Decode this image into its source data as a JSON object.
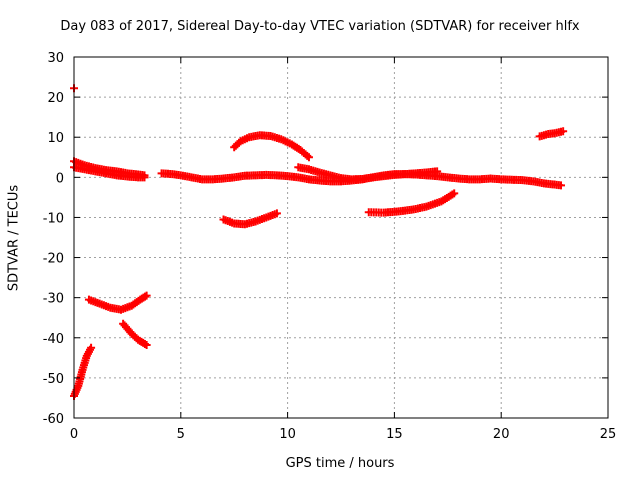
{
  "chart_data": {
    "type": "scatter",
    "title": "Day 083 of 2017, Sidereal Day-to-day VTEC variation (SDTVAR) for receiver hlfx",
    "xlabel": "GPS time / hours",
    "ylabel": "SDTVAR / TECUs",
    "xlim": [
      0,
      25
    ],
    "ylim": [
      -60,
      30
    ],
    "xticks": [
      "0",
      "5",
      "10",
      "15",
      "20",
      "25"
    ],
    "yticks": [
      "30",
      "20",
      "10",
      "0",
      "-10",
      "-20",
      "-30",
      "-40",
      "-50",
      "-60"
    ],
    "grid": true,
    "marker": "plus",
    "color": "#ff0000",
    "series": [
      {
        "points": [
          [
            0.0,
            4.0
          ],
          [
            0.5,
            3.0
          ],
          [
            1.0,
            2.3
          ],
          [
            1.5,
            1.8
          ],
          [
            2.0,
            1.5
          ],
          [
            2.5,
            1.0
          ],
          [
            3.0,
            0.7
          ],
          [
            3.3,
            0.5
          ]
        ]
      },
      {
        "points": [
          [
            0.0,
            2.5
          ],
          [
            0.5,
            2.0
          ],
          [
            1.0,
            1.5
          ],
          [
            1.5,
            1.0
          ],
          [
            2.0,
            0.5
          ],
          [
            2.5,
            0.2
          ],
          [
            3.0,
            0.0
          ],
          [
            3.3,
            0.0
          ]
        ]
      },
      {
        "points": [
          [
            4.1,
            1.0
          ],
          [
            4.6,
            0.8
          ],
          [
            5.0,
            0.5
          ],
          [
            5.5,
            0.0
          ],
          [
            6.0,
            -0.5
          ],
          [
            6.5,
            -0.5
          ],
          [
            7.0,
            -0.3
          ],
          [
            7.5,
            0.0
          ],
          [
            8.0,
            0.4
          ],
          [
            8.5,
            0.5
          ],
          [
            9.0,
            0.6
          ],
          [
            9.5,
            0.5
          ],
          [
            10.0,
            0.3
          ],
          [
            10.5,
            0.0
          ],
          [
            11.0,
            -0.5
          ],
          [
            11.5,
            -0.8
          ],
          [
            12.0,
            -1.0
          ],
          [
            12.5,
            -1.0
          ],
          [
            13.0,
            -0.8
          ],
          [
            13.5,
            -0.5
          ],
          [
            14.0,
            0.0
          ],
          [
            14.5,
            0.5
          ],
          [
            15.0,
            0.8
          ],
          [
            15.5,
            0.8
          ],
          [
            16.0,
            0.7
          ],
          [
            16.5,
            0.5
          ],
          [
            17.0,
            0.3
          ],
          [
            17.5,
            0.0
          ],
          [
            18.0,
            -0.3
          ],
          [
            18.5,
            -0.5
          ],
          [
            19.0,
            -0.5
          ],
          [
            19.5,
            -0.3
          ],
          [
            20.0,
            -0.5
          ],
          [
            20.5,
            -0.6
          ],
          [
            21.0,
            -0.7
          ],
          [
            21.5,
            -1.0
          ],
          [
            22.0,
            -1.5
          ],
          [
            22.5,
            -1.8
          ],
          [
            22.8,
            -2.0
          ]
        ]
      },
      {
        "points": [
          [
            10.5,
            2.5
          ],
          [
            11.0,
            2.0
          ],
          [
            11.5,
            1.2
          ],
          [
            12.0,
            0.5
          ],
          [
            12.5,
            -0.2
          ],
          [
            13.0,
            -0.5
          ],
          [
            13.5,
            -0.4
          ],
          [
            14.0,
            0.0
          ],
          [
            14.5,
            0.3
          ],
          [
            15.0,
            0.6
          ],
          [
            15.5,
            0.8
          ],
          [
            16.0,
            1.0
          ],
          [
            16.5,
            1.2
          ],
          [
            17.0,
            1.5
          ]
        ]
      },
      {
        "points": [
          [
            7.5,
            7.5
          ],
          [
            7.8,
            9.0
          ],
          [
            8.2,
            10.0
          ],
          [
            8.7,
            10.5
          ],
          [
            9.2,
            10.3
          ],
          [
            9.7,
            9.5
          ],
          [
            10.2,
            8.2
          ],
          [
            10.6,
            6.8
          ],
          [
            11.0,
            5.0
          ]
        ]
      },
      {
        "points": [
          [
            7.0,
            -10.5
          ],
          [
            7.5,
            -11.5
          ],
          [
            8.0,
            -11.7
          ],
          [
            8.5,
            -11.0
          ],
          [
            9.0,
            -10.0
          ],
          [
            9.5,
            -9.0
          ]
        ]
      },
      {
        "points": [
          [
            13.8,
            -8.7
          ],
          [
            14.5,
            -8.8
          ],
          [
            15.2,
            -8.5
          ],
          [
            15.9,
            -8.0
          ],
          [
            16.5,
            -7.3
          ],
          [
            17.2,
            -6.0
          ],
          [
            17.8,
            -4.0
          ]
        ]
      },
      {
        "points": [
          [
            21.8,
            10.2
          ],
          [
            22.2,
            10.8
          ],
          [
            22.5,
            11.0
          ],
          [
            22.9,
            11.5
          ]
        ]
      },
      {
        "points": [
          [
            0.0,
            22.2
          ]
        ]
      },
      {
        "points": [
          [
            0.7,
            -30.5
          ],
          [
            1.2,
            -31.5
          ],
          [
            1.7,
            -32.5
          ],
          [
            2.2,
            -33.0
          ],
          [
            2.7,
            -32.0
          ],
          [
            3.1,
            -30.5
          ],
          [
            3.4,
            -29.5
          ]
        ]
      },
      {
        "points": [
          [
            2.3,
            -36.5
          ],
          [
            2.7,
            -39.0
          ],
          [
            3.0,
            -40.5
          ],
          [
            3.4,
            -41.8
          ]
        ]
      },
      {
        "points": [
          [
            0.0,
            -54.5
          ],
          [
            0.2,
            -52.0
          ],
          [
            0.4,
            -48.0
          ],
          [
            0.6,
            -44.5
          ],
          [
            0.8,
            -42.5
          ]
        ]
      }
    ]
  }
}
